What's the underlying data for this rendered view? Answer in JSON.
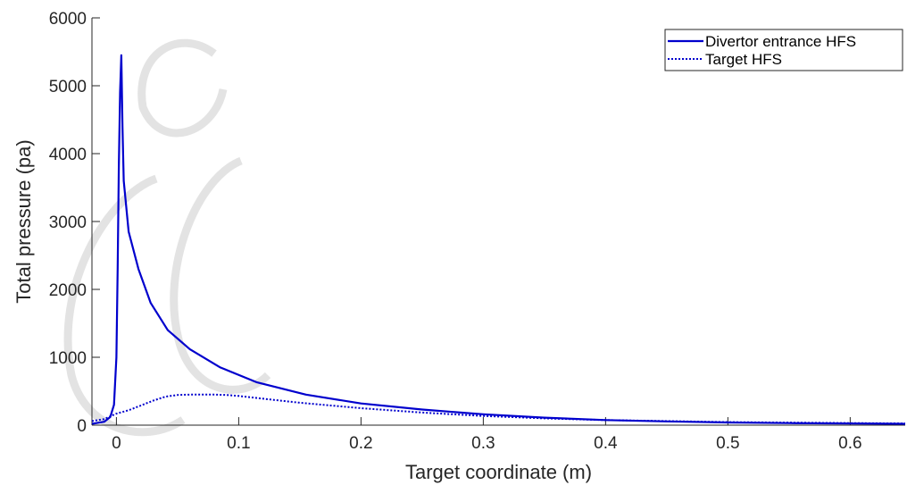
{
  "chart_data": {
    "type": "line",
    "title": "",
    "xlabel": "Target coordinate (m)",
    "ylabel": "Total pressure (pa)",
    "xlim": [
      -0.02,
      0.645
    ],
    "ylim": [
      0,
      6000
    ],
    "xticks": [
      0,
      0.1,
      0.2,
      0.3,
      0.4,
      0.5,
      0.6
    ],
    "xtick_labels": [
      "0",
      "0.1",
      "0.2",
      "0.3",
      "0.4",
      "0.5",
      "0.6"
    ],
    "yticks": [
      0,
      1000,
      2000,
      3000,
      4000,
      5000,
      6000
    ],
    "ytick_labels": [
      "0",
      "1000",
      "2000",
      "3000",
      "4000",
      "5000",
      "6000"
    ],
    "grid": false,
    "legend_position": "top-right",
    "series": [
      {
        "name": "Divertor entrance HFS",
        "style": "solid",
        "color": "#0000cd",
        "x": [
          -0.02,
          -0.01,
          -0.005,
          -0.002,
          0,
          0.001,
          0.002,
          0.003,
          0.004,
          0.005,
          0.006,
          0.01,
          0.018,
          0.028,
          0.042,
          0.06,
          0.085,
          0.115,
          0.155,
          0.2,
          0.25,
          0.3,
          0.35,
          0.4,
          0.45,
          0.5,
          0.55,
          0.6,
          0.645
        ],
        "y": [
          20,
          50,
          120,
          300,
          1000,
          2300,
          3800,
          4900,
          5450,
          4400,
          3600,
          2850,
          2300,
          1800,
          1400,
          1120,
          850,
          630,
          450,
          320,
          230,
          160,
          110,
          75,
          55,
          40,
          30,
          25,
          20
        ]
      },
      {
        "name": "Target HFS",
        "style": "dotted",
        "color": "#0000cd",
        "x": [
          -0.02,
          -0.01,
          0,
          0.01,
          0.02,
          0.03,
          0.04,
          0.05,
          0.06,
          0.07,
          0.08,
          0.09,
          0.1,
          0.12,
          0.15,
          0.2,
          0.25,
          0.3,
          0.35,
          0.4,
          0.5,
          0.6,
          0.645
        ],
        "y": [
          60,
          90,
          170,
          220,
          290,
          360,
          420,
          445,
          450,
          450,
          450,
          445,
          430,
          390,
          330,
          250,
          185,
          135,
          100,
          75,
          45,
          30,
          25
        ]
      }
    ]
  }
}
